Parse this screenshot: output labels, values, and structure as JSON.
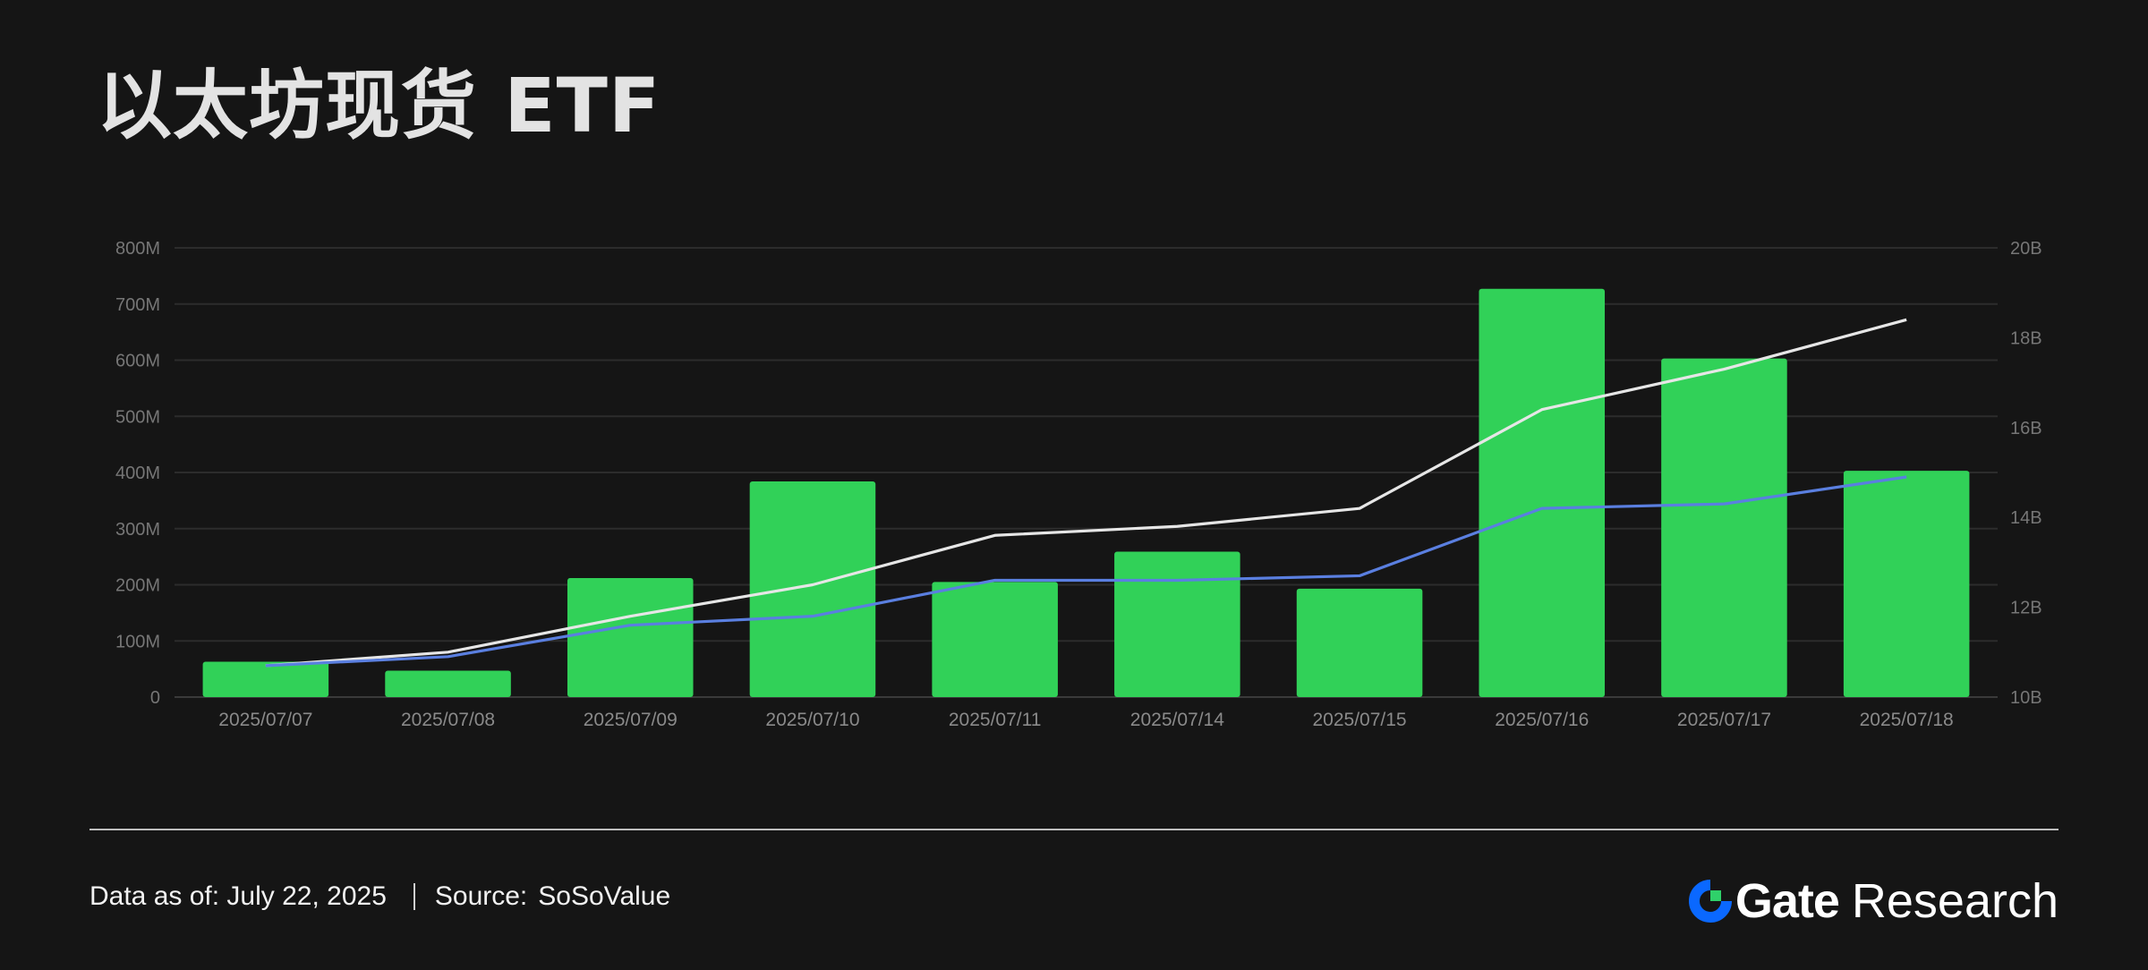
{
  "title": "以太坊现货 ETF",
  "chart_data": {
    "type": "bar",
    "categories": [
      "2025/07/07",
      "2025/07/08",
      "2025/07/09",
      "2025/07/10",
      "2025/07/11",
      "2025/07/14",
      "2025/07/15",
      "2025/07/16",
      "2025/07/17",
      "2025/07/18"
    ],
    "bar_series": {
      "values": [
        63,
        47,
        212,
        384,
        205,
        259,
        193,
        727,
        603,
        403
      ],
      "color": "#31d158",
      "axis": "left"
    },
    "line_series": [
      {
        "values": [
          10.7,
          11.0,
          11.8,
          12.5,
          13.6,
          13.8,
          14.2,
          16.4,
          17.3,
          18.4
        ],
        "color": "#e6e6e6",
        "axis": "right"
      },
      {
        "values": [
          10.7,
          10.9,
          11.6,
          11.8,
          12.6,
          12.6,
          12.7,
          14.2,
          14.3,
          14.9
        ],
        "color": "#5a7fe0",
        "axis": "right"
      }
    ],
    "y_left": {
      "min": 0,
      "max": 800,
      "ticks": [
        "0",
        "100M",
        "200M",
        "300M",
        "400M",
        "500M",
        "600M",
        "700M",
        "800M"
      ]
    },
    "y_right": {
      "min": 10,
      "max": 20,
      "ticks": [
        "10B",
        "12B",
        "14B",
        "16B",
        "18B",
        "20B"
      ]
    },
    "grid": true
  },
  "footer": {
    "data_as_of": "Data as of: July 22, 2025",
    "source_label": "Source:",
    "source_value": "SoSoValue"
  },
  "brand": {
    "name": "Gate",
    "suffix": "Research",
    "accent": "#0a68ff"
  }
}
